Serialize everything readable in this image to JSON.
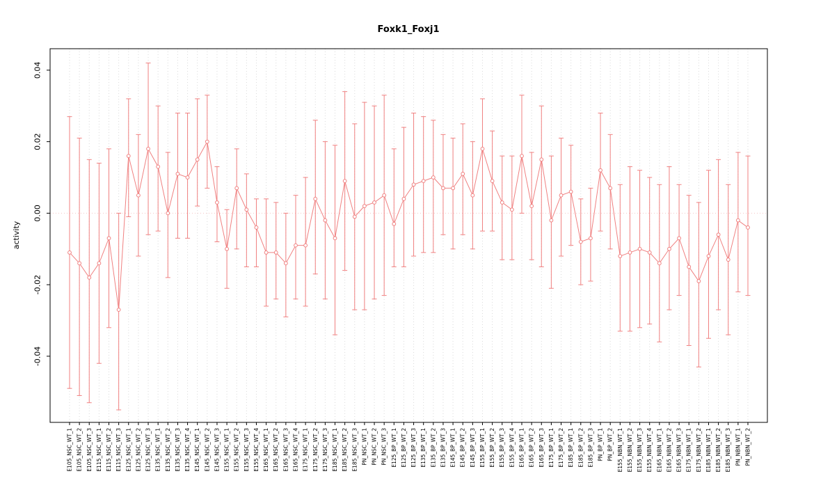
{
  "chart_data": {
    "type": "line",
    "title": "Foxk1_Foxj1",
    "xlabel": "",
    "ylabel": "activity",
    "ylim": [
      -0.0585,
      0.046
    ],
    "yticks": [
      -0.04,
      -0.02,
      0.0,
      0.02,
      0.04
    ],
    "grid": "vertical-dotted-per-category",
    "legend": "none",
    "marker": "open-circle",
    "error_bars": true,
    "colors": {
      "series": "#f08080",
      "grid": "#d9d9d9",
      "zero_line": "#f6c2c2",
      "axis": "#000000",
      "background": "#ffffff"
    },
    "categories": [
      "E105_NSC_WT_1",
      "E105_NSC_WT_2",
      "E105_NSC_WT_3",
      "E115_NSC_WT_1",
      "E115_NSC_WT_2",
      "E115_NSC_WT_3",
      "E125_NSC_WT_1",
      "E125_NSC_WT_2",
      "E125_NSC_WT_3",
      "E135_NSC_WT_1",
      "E135_NSC_WT_2",
      "E135_NSC_WT_3",
      "E135_NSC_WT_4",
      "E145_NSC_WT_1",
      "E145_NSC_WT_2",
      "E145_NSC_WT_3",
      "E155_NSC_WT_1",
      "E155_NSC_WT_2",
      "E155_NSC_WT_3",
      "E155_NSC_WT_4",
      "E165_NSC_WT_1",
      "E165_NSC_WT_2",
      "E165_NSC_WT_3",
      "E165_NSC_WT_4",
      "E175_NSC_WT_1",
      "E175_NSC_WT_2",
      "E175_NSC_WT_3",
      "E185_NSC_WT_1",
      "E185_NSC_WT_2",
      "E185_NSC_WT_3",
      "PN_NSC_WT_1",
      "PN_NSC_WT_2",
      "PN_NSC_WT_3",
      "E125_BP_WT_1",
      "E125_BP_WT_2",
      "E125_BP_WT_3",
      "E135_BP_WT_1",
      "E135_BP_WT_2",
      "E135_BP_WT_3",
      "E145_BP_WT_1",
      "E145_BP_WT_2",
      "E145_BP_WT_3",
      "E155_BP_WT_1",
      "E155_BP_WT_2",
      "E155_BP_WT_3",
      "E155_BP_WT_4",
      "E165_BP_WT_1",
      "E165_BP_WT_2",
      "E165_BP_WT_3",
      "E175_BP_WT_1",
      "E175_BP_WT_2",
      "E185_BP_WT_1",
      "E185_BP_WT_2",
      "E185_BP_WT_3",
      "PN_BP_WT_1",
      "PN_BP_WT_2",
      "E155_NBN_WT_1",
      "E155_NBN_WT_2",
      "E155_NBN_WT_3",
      "E155_NBN_WT_4",
      "E165_NBN_WT_1",
      "E165_NBN_WT_2",
      "E165_NBN_WT_3",
      "E175_NBN_WT_1",
      "E175_NBN_WT_2",
      "E185_NBN_WT_1",
      "E185_NBN_WT_2",
      "E185_NBN_WT_3",
      "PN_NBN_WT_1",
      "PN_NBN_WT_2"
    ],
    "values": [
      -0.011,
      -0.014,
      -0.018,
      -0.014,
      -0.007,
      -0.027,
      0.016,
      0.005,
      0.018,
      0.013,
      0.0,
      0.011,
      0.01,
      0.015,
      0.02,
      0.003,
      -0.01,
      0.007,
      0.001,
      -0.004,
      -0.011,
      -0.011,
      -0.014,
      -0.009,
      -0.009,
      0.004,
      -0.002,
      -0.007,
      0.009,
      -0.001,
      0.002,
      0.003,
      0.005,
      -0.003,
      0.004,
      0.008,
      0.009,
      0.01,
      0.007,
      0.007,
      0.011,
      0.005,
      0.018,
      0.009,
      0.003,
      0.001,
      0.016,
      0.002,
      0.015,
      -0.002,
      0.005,
      0.006,
      -0.008,
      -0.007,
      0.012,
      0.007,
      -0.012,
      -0.011,
      -0.01,
      -0.011,
      -0.014,
      -0.01,
      -0.007,
      -0.015,
      -0.019,
      -0.012,
      -0.006,
      -0.013,
      -0.002,
      -0.004
    ],
    "err_low": [
      -0.049,
      -0.051,
      -0.053,
      -0.042,
      -0.032,
      -0.055,
      -0.001,
      -0.012,
      -0.006,
      -0.005,
      -0.018,
      -0.007,
      -0.007,
      0.002,
      0.007,
      -0.008,
      -0.021,
      -0.01,
      -0.015,
      -0.015,
      -0.026,
      -0.024,
      -0.029,
      -0.024,
      -0.026,
      -0.017,
      -0.024,
      -0.034,
      -0.016,
      -0.027,
      -0.027,
      -0.024,
      -0.023,
      -0.015,
      -0.015,
      -0.012,
      -0.011,
      -0.011,
      -0.006,
      -0.01,
      -0.006,
      -0.01,
      -0.005,
      -0.005,
      -0.013,
      -0.013,
      0.0,
      -0.013,
      -0.015,
      -0.021,
      -0.012,
      -0.009,
      -0.02,
      -0.019,
      -0.005,
      -0.01,
      -0.033,
      -0.033,
      -0.032,
      -0.031,
      -0.036,
      -0.027,
      -0.023,
      -0.037,
      -0.043,
      -0.035,
      -0.027,
      -0.034,
      -0.022,
      -0.023
    ],
    "err_high": [
      0.027,
      0.021,
      0.015,
      0.014,
      0.018,
      0.0,
      0.032,
      0.022,
      0.042,
      0.03,
      0.017,
      0.028,
      0.028,
      0.032,
      0.033,
      0.013,
      0.001,
      0.018,
      0.011,
      0.004,
      0.004,
      0.003,
      0.0,
      0.005,
      0.01,
      0.026,
      0.02,
      0.019,
      0.034,
      0.025,
      0.031,
      0.03,
      0.033,
      0.018,
      0.024,
      0.028,
      0.027,
      0.026,
      0.022,
      0.021,
      0.025,
      0.02,
      0.032,
      0.023,
      0.016,
      0.016,
      0.033,
      0.017,
      0.03,
      0.016,
      0.021,
      0.019,
      0.004,
      0.007,
      0.028,
      0.022,
      0.008,
      0.013,
      0.012,
      0.01,
      0.008,
      0.013,
      0.008,
      0.005,
      0.003,
      0.012,
      0.015,
      0.008,
      0.017,
      0.016
    ]
  }
}
